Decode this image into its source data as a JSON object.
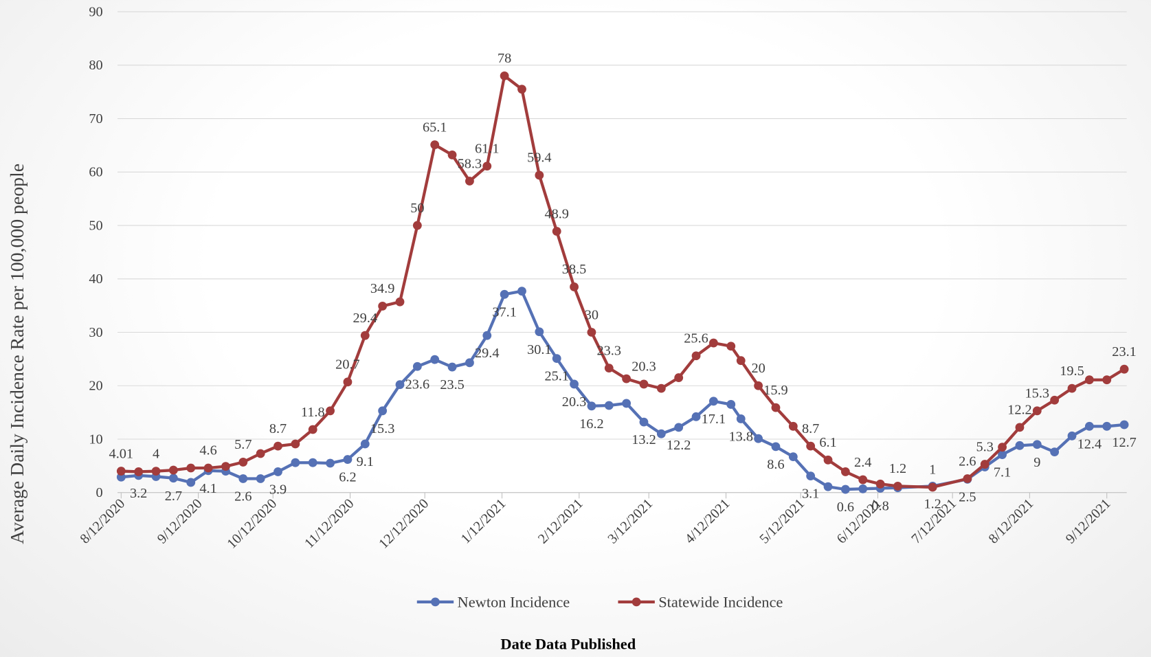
{
  "chart_data": {
    "type": "line",
    "y_label": "Average Daily Incidence Rate per 100,000 people",
    "x_label": "Date Data Published",
    "x": [
      "2020-08-12",
      "2020-08-19",
      "2020-08-26",
      "2020-09-02",
      "2020-09-09",
      "2020-09-16",
      "2020-09-23",
      "2020-09-30",
      "2020-10-07",
      "2020-10-14",
      "2020-10-21",
      "2020-10-28",
      "2020-11-04",
      "2020-11-11",
      "2020-11-18",
      "2020-11-25",
      "2020-12-02",
      "2020-12-09",
      "2020-12-16",
      "2020-12-23",
      "2020-12-30",
      "2021-01-06",
      "2021-01-13",
      "2021-01-20",
      "2021-01-27",
      "2021-02-03",
      "2021-02-10",
      "2021-02-17",
      "2021-02-24",
      "2021-03-03",
      "2021-03-10",
      "2021-03-17",
      "2021-03-24",
      "2021-03-31",
      "2021-04-07",
      "2021-04-14",
      "2021-04-18",
      "2021-04-25",
      "2021-05-02",
      "2021-05-09",
      "2021-05-16",
      "2021-05-23",
      "2021-05-30",
      "2021-06-06",
      "2021-06-13",
      "2021-06-20",
      "2021-07-04",
      "2021-07-18",
      "2021-07-25",
      "2021-08-01",
      "2021-08-08",
      "2021-08-15",
      "2021-08-22",
      "2021-08-29",
      "2021-09-05",
      "2021-09-12",
      "2021-09-19"
    ],
    "series": [
      {
        "name": "Newton Incidence",
        "color": "#5571b5",
        "values": [
          2.9,
          3.2,
          3,
          2.7,
          1.9,
          4.1,
          4,
          2.6,
          2.6,
          3.9,
          5.6,
          5.6,
          5.5,
          6.2,
          9.1,
          15.3,
          20.2,
          23.6,
          24.9,
          23.5,
          24.3,
          29.4,
          37.1,
          37.7,
          30.1,
          25.1,
          20.3,
          16.2,
          16.3,
          16.7,
          13.2,
          11,
          12.2,
          14.2,
          17.1,
          16.5,
          13.8,
          10.1,
          8.6,
          6.7,
          3.1,
          1.1,
          0.6,
          0.7,
          0.8,
          0.9,
          1.2,
          2.5,
          4.8,
          7.1,
          8.8,
          9,
          7.6,
          10.6,
          12.4,
          12.4,
          12.7
        ],
        "value_labels": [
          null,
          "3.2",
          null,
          "2.7",
          null,
          "4.1",
          null,
          "2.6",
          null,
          "3.9",
          null,
          null,
          null,
          "6.2",
          "9.1",
          "15.3",
          null,
          "23.6",
          null,
          "23.5",
          null,
          "29.4",
          "37.1",
          null,
          "30.1",
          "25.1",
          "20.3",
          "16.2",
          null,
          null,
          "13.2",
          null,
          "12.2",
          null,
          "17.1",
          null,
          "13.8",
          null,
          "8.6",
          null,
          "3.1",
          null,
          "0.6",
          null,
          "0.8",
          null,
          "1.2",
          "2.5",
          null,
          "7.1",
          null,
          "9",
          null,
          null,
          "12.4",
          null,
          "12.7"
        ]
      },
      {
        "name": "Statewide Incidence",
        "color": "#a23c3c",
        "values": [
          4.01,
          3.9,
          4,
          4.2,
          4.6,
          4.6,
          4.9,
          5.7,
          7.3,
          8.7,
          9.1,
          11.8,
          15.3,
          20.7,
          29.4,
          34.9,
          35.7,
          50,
          65.1,
          63.2,
          58.3,
          61.1,
          78,
          75.5,
          59.4,
          48.9,
          38.5,
          30,
          23.3,
          21.3,
          20.3,
          19.5,
          21.5,
          25.6,
          28,
          27.4,
          24.7,
          20,
          15.9,
          12.4,
          8.7,
          6.1,
          3.9,
          2.4,
          1.6,
          1.2,
          1,
          2.6,
          5.3,
          8.5,
          12.2,
          15.3,
          17.3,
          19.5,
          21.1,
          21.1,
          23.1
        ],
        "value_labels": [
          "4.01",
          null,
          "4",
          null,
          null,
          "4.6",
          null,
          "5.7",
          null,
          "8.7",
          null,
          "11.8",
          null,
          "20.7",
          "29.4",
          "34.9",
          null,
          "50",
          "65.1",
          null,
          "58.3",
          "61.1",
          "78",
          null,
          "59.4",
          "48.9",
          "38.5",
          "30",
          "23.3",
          null,
          "20.3",
          null,
          null,
          "25.6",
          null,
          null,
          null,
          "20",
          "15.9",
          null,
          "8.7",
          "6.1",
          null,
          "2.4",
          null,
          "1.2",
          "1",
          "2.6",
          "5.3",
          null,
          "12.2",
          "15.3",
          null,
          "19.5",
          null,
          null,
          "23.1"
        ]
      }
    ],
    "xlim": [
      "2020-08-12",
      "2021-09-20"
    ],
    "xticks": [
      {
        "value": "2020-08-12",
        "label": "8/12/2020"
      },
      {
        "value": "2020-09-12",
        "label": "9/12/2020"
      },
      {
        "value": "2020-10-12",
        "label": "10/12/2020"
      },
      {
        "value": "2020-11-12",
        "label": "11/12/2020"
      },
      {
        "value": "2020-12-12",
        "label": "12/12/2020"
      },
      {
        "value": "2021-01-12",
        "label": "1/12/2021"
      },
      {
        "value": "2021-02-12",
        "label": "2/12/2021"
      },
      {
        "value": "2021-03-12",
        "label": "3/12/2021"
      },
      {
        "value": "2021-04-12",
        "label": "4/12/2021"
      },
      {
        "value": "2021-05-12",
        "label": "5/12/2021"
      },
      {
        "value": "2021-06-12",
        "label": "6/12/2021"
      },
      {
        "value": "2021-07-12",
        "label": "7/12/2021"
      },
      {
        "value": "2021-08-12",
        "label": "8/12/2021"
      },
      {
        "value": "2021-09-12",
        "label": "9/12/2021"
      }
    ],
    "ylim": [
      0,
      90
    ],
    "yticks": [
      0,
      10,
      20,
      30,
      40,
      50,
      60,
      70,
      80,
      90
    ],
    "grid": true,
    "legend": "bottom"
  }
}
